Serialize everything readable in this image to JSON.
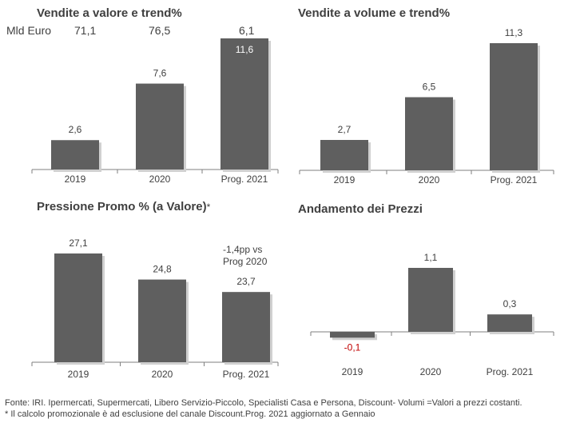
{
  "colors": {
    "bar": "#5f5f5f",
    "negative_label": "#c00000",
    "axis": "#7f7f7f",
    "text": "#404040"
  },
  "chart_data": [
    {
      "type": "bar",
      "title": "Vendite a valore e trend%",
      "categories": [
        "2019",
        "2020",
        "Prog. 2021"
      ],
      "values": [
        2.6,
        7.6,
        11.6
      ],
      "value_labels": [
        "2,6",
        "7,6",
        "11,6"
      ],
      "totals_label": "Mld Euro",
      "totals": [
        "71,1",
        "76,5",
        "6,1"
      ],
      "ylim": [
        0,
        11.6
      ]
    },
    {
      "type": "bar",
      "title": "Vendite a volume e trend%",
      "categories": [
        "2019",
        "2020",
        "Prog. 2021"
      ],
      "values": [
        2.7,
        6.5,
        11.3
      ],
      "value_labels": [
        "2,7",
        "6,5",
        "11,3"
      ],
      "ylim": [
        0,
        11.3
      ]
    },
    {
      "type": "bar",
      "title": "Pressione Promo % (a Valore)",
      "title_mark": "*",
      "categories": [
        "2019",
        "2020",
        "Prog. 2021"
      ],
      "values": [
        27.1,
        24.8,
        23.7
      ],
      "value_labels": [
        "27,1",
        "24,8",
        "23,7"
      ],
      "annotation": [
        "-1,4pp vs",
        "Prog 2020"
      ],
      "ylim": [
        17.5,
        27.1
      ]
    },
    {
      "type": "bar",
      "title": "Andamento dei Prezzi",
      "categories": [
        "2019",
        "2020",
        "Prog. 2021"
      ],
      "values": [
        -0.1,
        1.1,
        0.3
      ],
      "value_labels": [
        "-0,1",
        "1,1",
        "0,3"
      ],
      "ylim": [
        -0.1,
        1.1
      ]
    }
  ],
  "footer": {
    "line1": "Fonte: IRI. Ipermercati, Supermercati, Libero Servizio-Piccolo, Specialisti Casa e Persona, Discount-  Volumi =Valori a prezzi costanti.",
    "line2": "* Il calcolo promozionale è ad esclusione del canale Discount.Prog. 2021 aggiornato a Gennaio"
  }
}
